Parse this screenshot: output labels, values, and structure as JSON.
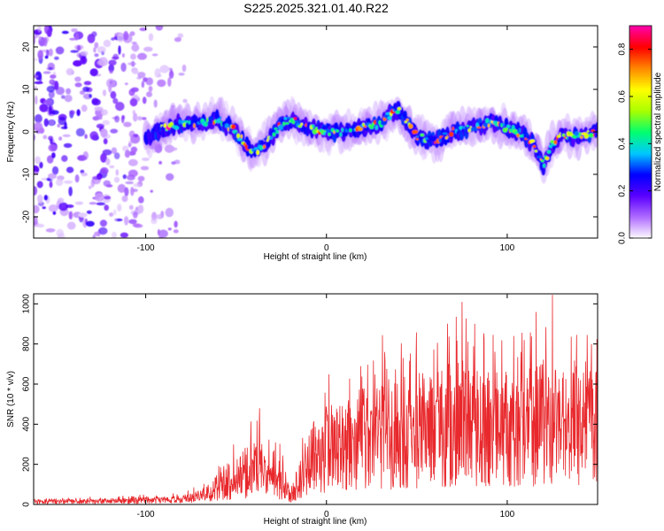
{
  "title": "S225.2025.321.01.40.R22",
  "chart_data": [
    {
      "type": "heatmap",
      "title": "S225.2025.321.01.40.R22",
      "xlabel": "Height of straight line (km)",
      "ylabel": "Frequency (Hz)",
      "xlim": [
        -162,
        150
      ],
      "ylim": [
        -25,
        25
      ],
      "xticks": [
        -100,
        0,
        100
      ],
      "yticks": [
        -20,
        -10,
        0,
        10,
        20
      ],
      "xtick_labels": [
        "-100",
        "0",
        "100"
      ],
      "ytick_labels": [
        "-20",
        "-10",
        "0",
        "10",
        "20"
      ],
      "colorbar": {
        "label": "Normalized spectral amplitude",
        "range": [
          0,
          0.9
        ],
        "ticks": [
          0.0,
          0.2,
          0.4,
          0.6,
          0.8
        ],
        "tick_labels": [
          "0.0",
          "0.2",
          "0.4",
          "0.6",
          "0.8"
        ],
        "colors": [
          "#ffffff",
          "#b06cff",
          "#5a00ff",
          "#0000ff",
          "#00c8ff",
          "#00ff70",
          "#a8ff00",
          "#ffff00",
          "#ff8800",
          "#ff0000",
          "#ff00aa"
        ]
      },
      "ridge": {
        "x": [
          -100,
          -90,
          -80,
          -70,
          -60,
          -50,
          -45,
          -40,
          -35,
          -30,
          -25,
          -20,
          -10,
          0,
          10,
          20,
          30,
          35,
          40,
          45,
          50,
          60,
          70,
          80,
          90,
          100,
          110,
          115,
          120,
          125,
          130,
          140,
          150
        ],
        "freq": [
          -2,
          1,
          2,
          2,
          3,
          0,
          -3,
          -5,
          -3,
          -1,
          2,
          3,
          1,
          0,
          0,
          1,
          2,
          4,
          5,
          2,
          -1,
          -2,
          0,
          1,
          2,
          1,
          -1,
          -3,
          -8,
          -3,
          -1,
          -1,
          0
        ]
      },
      "noise_region_x": [
        -162,
        -78
      ]
    },
    {
      "type": "line",
      "xlabel": "Height of straight line (km)",
      "ylabel": "SNR (10 * v/v)",
      "xlim": [
        -162,
        150
      ],
      "ylim": [
        0,
        1050
      ],
      "xticks": [
        -100,
        0,
        100
      ],
      "yticks": [
        0,
        200,
        400,
        600,
        800,
        1000
      ],
      "xtick_labels": [
        "-100",
        "0",
        "100"
      ],
      "ytick_labels": [
        "0",
        "200",
        "400",
        "600",
        "800",
        "1000"
      ],
      "series": [
        {
          "name": "SNR",
          "color": "#e8282c",
          "envelope_x": [
            -162,
            -120,
            -100,
            -80,
            -70,
            -65,
            -60,
            -50,
            -40,
            -35,
            -30,
            -25,
            -22,
            -20,
            -15,
            -10,
            -5,
            0,
            10,
            20,
            30,
            40,
            50,
            60,
            70,
            80,
            90,
            100,
            110,
            120,
            130,
            140,
            150
          ],
          "envelope_mean": [
            15,
            15,
            20,
            25,
            40,
            60,
            90,
            130,
            170,
            160,
            130,
            110,
            60,
            40,
            130,
            220,
            260,
            300,
            330,
            350,
            360,
            380,
            400,
            410,
            420,
            430,
            430,
            440,
            430,
            420,
            420,
            430,
            430
          ],
          "envelope_peak": [
            35,
            40,
            50,
            60,
            100,
            160,
            250,
            330,
            480,
            330,
            320,
            300,
            150,
            80,
            400,
            500,
            600,
            670,
            620,
            700,
            850,
            830,
            870,
            850,
            1000,
            950,
            860,
            870,
            920,
            1020,
            860,
            850,
            860
          ],
          "notable_peaks": [
            {
              "x": -37,
              "y": 480
            },
            {
              "x": 75,
              "y": 1010
            },
            {
              "x": 125,
              "y": 1045
            }
          ]
        }
      ]
    }
  ]
}
